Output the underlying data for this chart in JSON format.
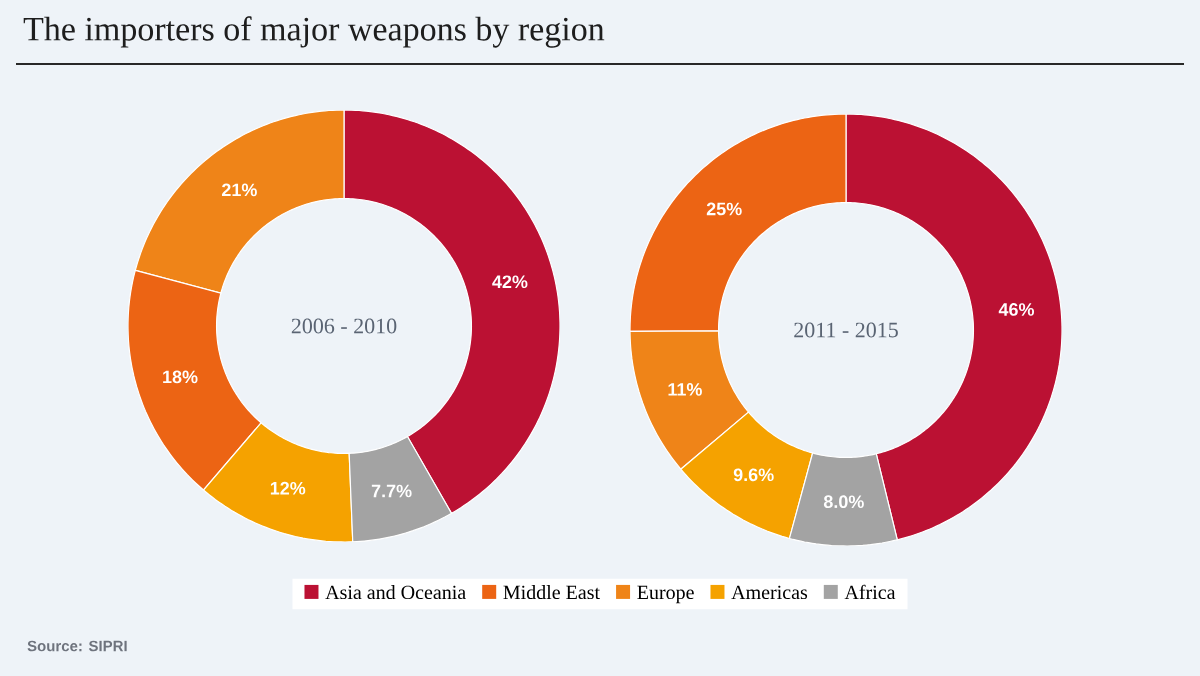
{
  "chart_data": [
    {
      "type": "donut",
      "title": "The importers of major weapons by region",
      "subtitle": "2006 - 2010",
      "categories": [
        null,
        null,
        null,
        null,
        null
      ],
      "values": [
        42,
        21,
        18,
        12,
        7.7
      ],
      "value_labels": [
        "42%",
        "21%",
        "18%",
        "12%",
        "7.7%"
      ],
      "colors": [
        "#bb1133",
        "#ef8418",
        "#ec6414",
        "#f5a200",
        "#a3a3a3"
      ]
    },
    {
      "type": "donut",
      "subtitle": "2011 - 2015",
      "categories": [
        "Asia and Oceania",
        "Middle East",
        "Europe",
        "Americas",
        "Africa"
      ],
      "values": [
        46,
        25,
        11,
        9.6,
        8.0
      ],
      "value_labels": [
        "46%",
        "25%",
        "11%",
        "9.6%",
        "8.0%"
      ],
      "colors": [
        "#bb1133",
        "#ec6414",
        "#ef8418",
        "#f5a200",
        "#a3a3a3"
      ],
      "legend": "bottom",
      "annotations": [
        "Source: SIPRI"
      ]
    }
  ]
}
